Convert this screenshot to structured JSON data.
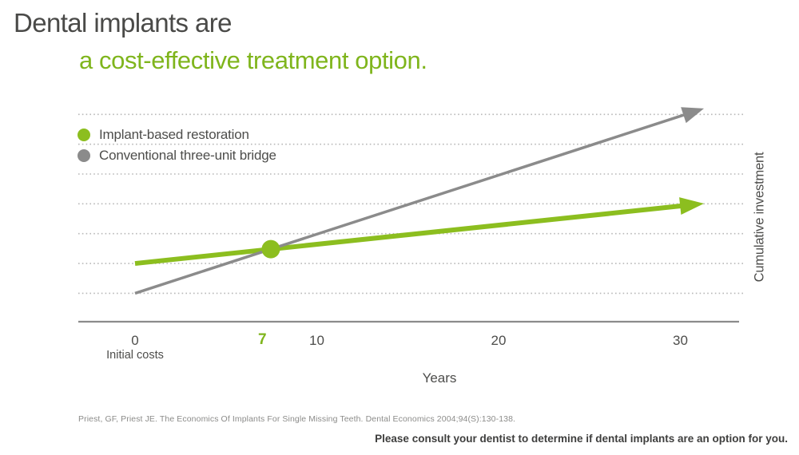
{
  "page": {
    "title": "Dental implants are",
    "subtitle": "a cost-effective treatment option.",
    "citation": "Priest, GF, Priest JE. The Economics Of Implants For Single Missing Teeth. Dental Economics 2004;94(S):130-138.",
    "disclaimer": "Please consult your dentist to determine if dental implants are an option for you."
  },
  "colors": {
    "green_text": "#7FB51C",
    "green_line": "#8CBE1F",
    "gray_line": "#8B8B8B",
    "title_gray": "#4A4A48",
    "text_gray": "#4D4D4B",
    "gridline": "#B8B8B8",
    "citation_gray": "#8C8C8A",
    "disclaimer_gray": "#3E3E3D"
  },
  "legend": {
    "items": [
      {
        "label": "Implant-based restoration",
        "color": "#8CBE1F"
      },
      {
        "label": "Conventional three-unit bridge",
        "color": "#8B8B8B"
      }
    ]
  },
  "chart_data": {
    "type": "line",
    "title": "",
    "xlabel": "Years",
    "ylabel": "Cumulative investment",
    "x_unit": "years",
    "x_range": [
      -3.1,
      33.5
    ],
    "y_unit": "relative cumulative investment (unlabeled axis, 7 dotted gridlines = units 0..6)",
    "y_range": [
      0,
      6
    ],
    "grid": "horizontal dotted lines only",
    "legend_position": "top-left inside plot",
    "x_ticks": [
      {
        "value": 0,
        "label": "0",
        "sublabel": "Initial costs",
        "highlight": false
      },
      {
        "value": 7,
        "label": "7",
        "sublabel": "",
        "highlight": true
      },
      {
        "value": 10,
        "label": "10",
        "sublabel": "",
        "highlight": false
      },
      {
        "value": 20,
        "label": "20",
        "sublabel": "",
        "highlight": false
      },
      {
        "value": 30,
        "label": "30",
        "sublabel": "",
        "highlight": false
      }
    ],
    "gridlines_y_units": [
      0,
      1,
      2,
      3,
      4,
      5,
      6
    ],
    "series": [
      {
        "name": "Implant-based restoration",
        "color": "#8CBE1F",
        "stroke_width": 6,
        "arrow": {
          "length": 30,
          "half_width": 11
        },
        "points": [
          [
            0,
            1.0
          ],
          [
            31.3,
            3.01
          ]
        ]
      },
      {
        "name": "Conventional three-unit bridge",
        "color": "#8B8B8B",
        "stroke_width": 3.5,
        "arrow": {
          "length": 27,
          "half_width": 10.5
        },
        "points": [
          [
            0,
            0.0
          ],
          [
            31.3,
            6.2
          ]
        ]
      }
    ],
    "intersection_marker": {
      "x": 7.47,
      "y": 1.48,
      "radius": 11.5,
      "color": "#8CBE1F",
      "meaning": "implant-based restoration becomes cheaper than conventional bridge at ~7 years"
    }
  }
}
